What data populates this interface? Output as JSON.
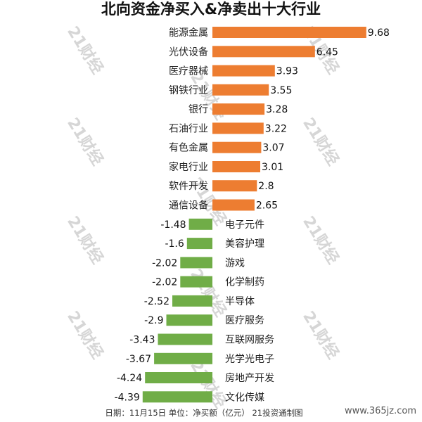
{
  "title": "北向资金净买入&净卖出十大行业",
  "chart_data": {
    "type": "bar",
    "orientation": "horizontal",
    "title": "北向资金净买入&净卖出十大行业",
    "categories": [
      "能源金属",
      "光伏设备",
      "医疗器械",
      "钢铁行业",
      "银行",
      "石油行业",
      "有色金属",
      "家电行业",
      "软件开发",
      "通信设备",
      "电子元件",
      "美容护理",
      "游戏",
      "化学制药",
      "半导体",
      "医疗服务",
      "互联网服务",
      "光学光电子",
      "房地产开发",
      "文化传媒"
    ],
    "values": [
      9.68,
      6.45,
      3.93,
      3.55,
      3.28,
      3.22,
      3.07,
      3.01,
      2.8,
      2.65,
      -1.48,
      -1.6,
      -2.02,
      -2.02,
      -2.52,
      -2.9,
      -3.43,
      -3.67,
      -4.24,
      -4.39
    ],
    "value_labels": [
      "9.68",
      "6.45",
      "3.93",
      "3.55",
      "3.28",
      "3.22",
      "3.07",
      "3.01",
      "2.8",
      "2.65",
      "-1.48",
      "-1.6",
      "-2.02",
      "-2.02",
      "-2.52",
      "-2.9",
      "-3.43",
      "-3.67",
      "-4.24",
      "-4.39"
    ],
    "colors": {
      "positive": "#ed7d31",
      "negative": "#70ad47"
    },
    "xlabel": "",
    "ylabel": "",
    "grid": false,
    "legend": "none"
  },
  "footer": "日期：11月15日 单位：净买额（亿元） 21投资通制图",
  "watermark": "21财经",
  "site_mark": "www.365jz.com"
}
